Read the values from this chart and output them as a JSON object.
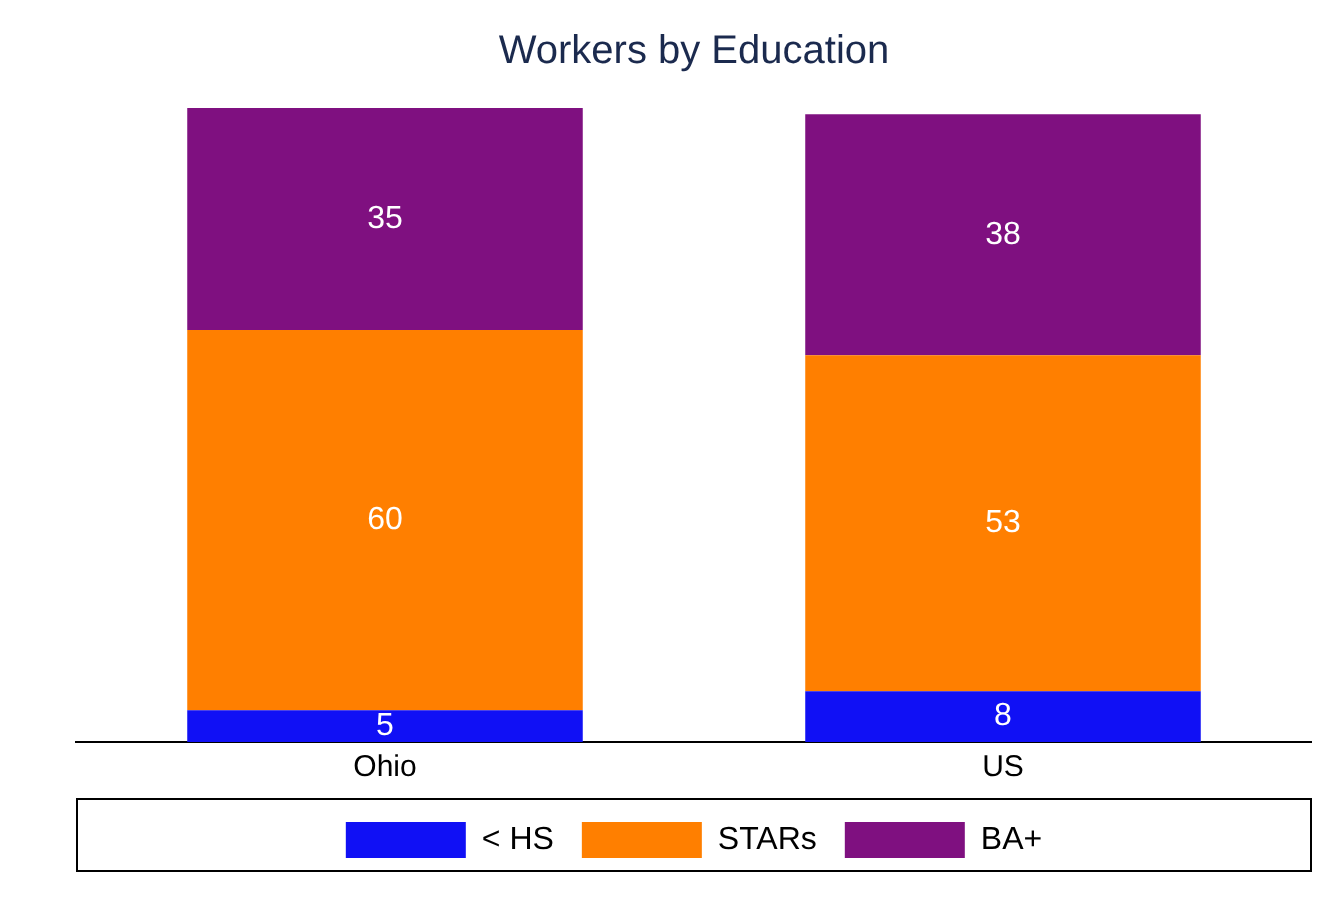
{
  "chart_data": {
    "type": "bar",
    "title": "Workers by Education",
    "categories": [
      "Ohio",
      "US"
    ],
    "stacked": true,
    "data_labels": true,
    "legend": "bottom",
    "grid": false,
    "series": [
      {
        "name": "< HS",
        "color": "#1010f5",
        "values": [
          5,
          8
        ]
      },
      {
        "name": "STARs",
        "color": "#ff7f00",
        "values": [
          60,
          53
        ]
      },
      {
        "name": "BA+",
        "color": "#7f1080",
        "values": [
          35,
          38
        ]
      }
    ]
  }
}
